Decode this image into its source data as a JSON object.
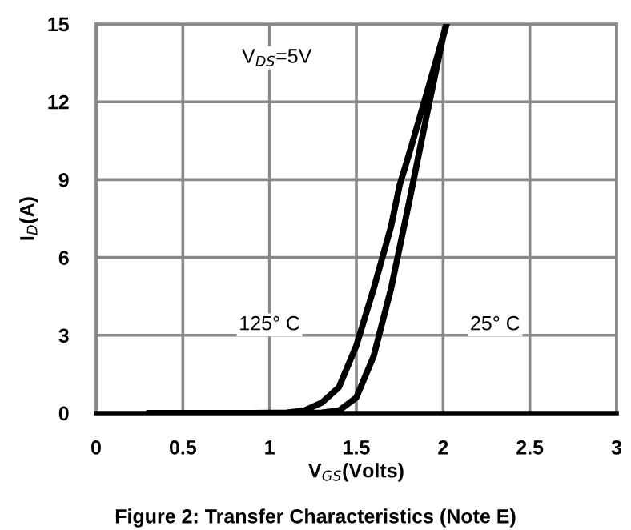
{
  "chart_data": {
    "type": "line",
    "title": "Figure 2: Transfer Characteristics (Note E)",
    "xlabel": "V$_{GS}$(Volts)",
    "ylabel": "I$_{D}$(A)",
    "series": [
      {
        "color": "#000000",
        "x": [
          0.3,
          0.6,
          0.9,
          1.1,
          1.2,
          1.3,
          1.4,
          1.5,
          1.6,
          1.7,
          1.75,
          1.8,
          1.9,
          2.02
        ],
        "values": [
          0,
          0,
          0,
          0.02,
          0.1,
          0.4,
          1.0,
          2.6,
          4.8,
          7.2,
          8.8,
          9.9,
          12.2,
          15
        ]
      },
      {
        "color": "#000000",
        "x": [
          1.0,
          1.2,
          1.3,
          1.4,
          1.5,
          1.6,
          1.7,
          1.8,
          1.9,
          2.0,
          2.02
        ],
        "values": [
          0,
          0,
          0.02,
          0.1,
          0.6,
          2.2,
          4.8,
          8.0,
          11.3,
          14.5,
          15
        ]
      }
    ],
    "annotations": [
      "V$_{DS}$=5V",
      {
        "text": "125° C",
        "x": 1.0,
        "y": 3.4
      },
      {
        "text": "25° C",
        "x": 2.3,
        "y": 3.4
      }
    ],
    "xlim": [
      0,
      3
    ],
    "ylim": [
      0,
      15
    ],
    "xticks": [
      0,
      0.5,
      1,
      1.5,
      2,
      2.5,
      3
    ],
    "yticks": [
      0,
      3,
      6,
      9,
      12,
      15
    ],
    "grid": true,
    "line_style": "solid",
    "marker": "none"
  }
}
